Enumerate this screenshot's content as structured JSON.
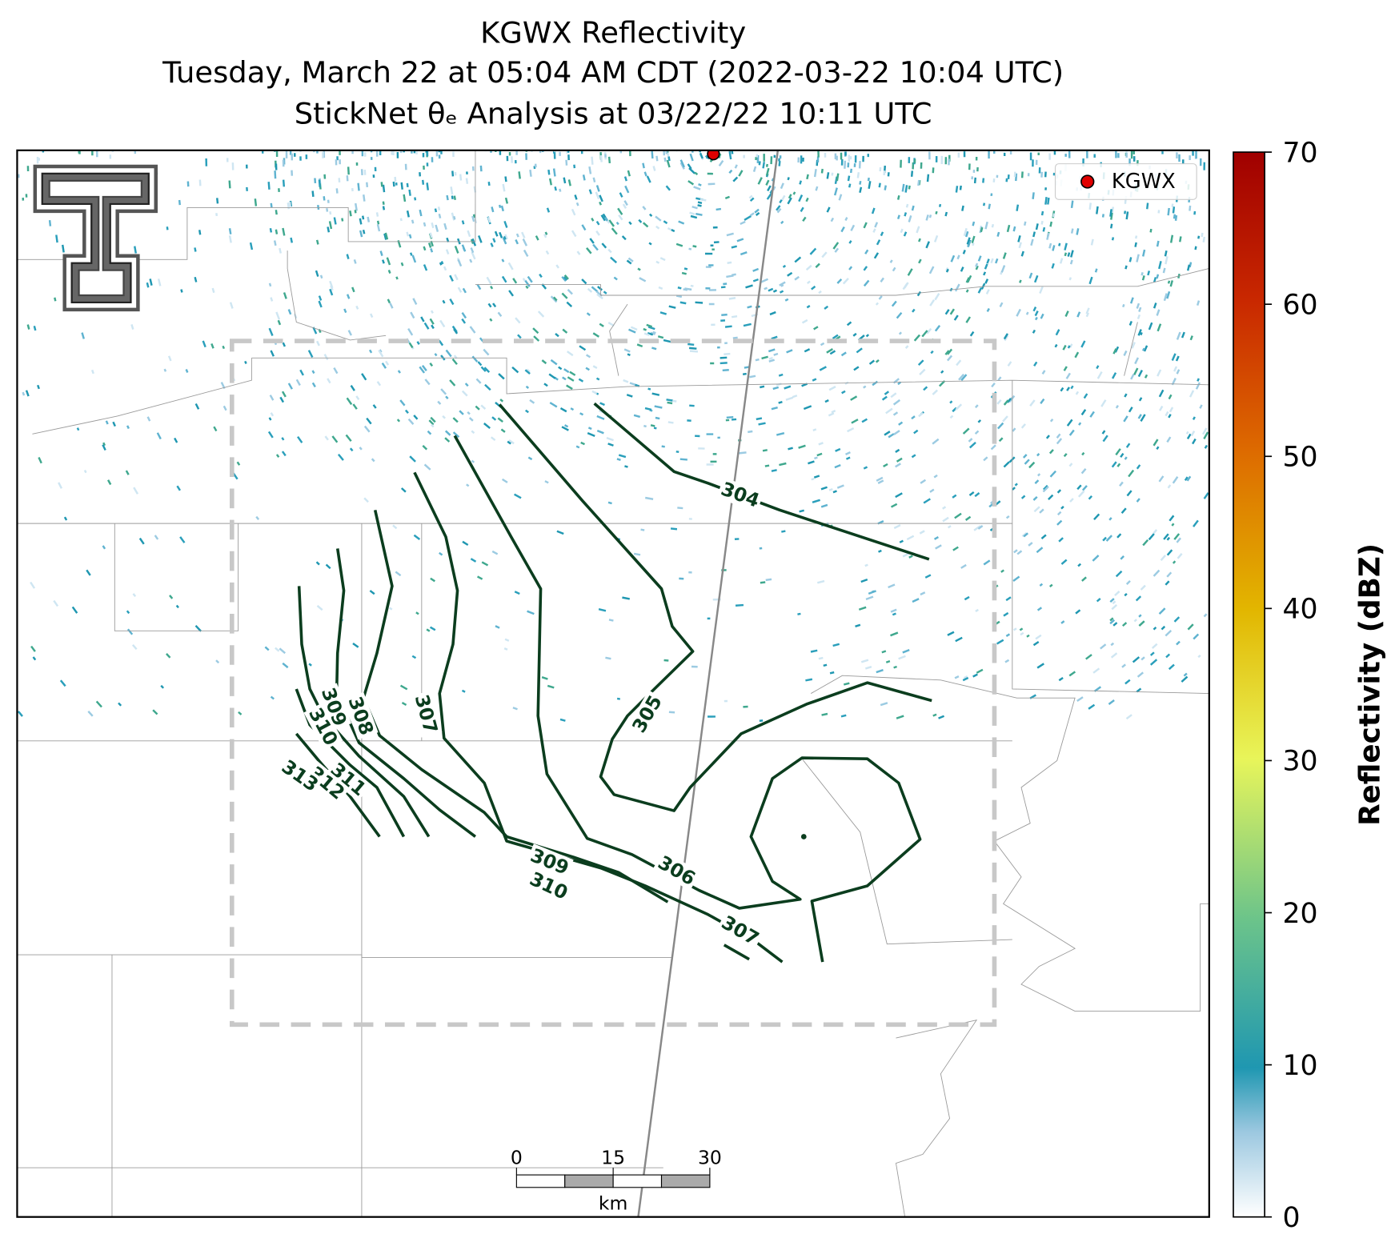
{
  "chart_data": {
    "type": "radar-map",
    "title": [
      "KGWX Reflectivity",
      "Tuesday, March 22 at 05:04 AM CDT (2022-03-22 10:04 UTC)",
      "StickNet θₑ Analysis at 03/22/22 10:11 UTC"
    ],
    "legend": {
      "name": "KGWX",
      "color": "#e00000",
      "corner": "upper right"
    },
    "colorbar": {
      "label": "Reflectivity (dBZ)",
      "ylim": [
        0,
        70
      ],
      "yticks": [
        0,
        10,
        20,
        30,
        40,
        50,
        60,
        70
      ]
    },
    "contours": [
      {
        "level": 304
      },
      {
        "level": 305
      },
      {
        "level": 306
      },
      {
        "level": 307
      },
      {
        "level": 308
      },
      {
        "level": 309
      },
      {
        "level": 310
      },
      {
        "level": 311
      },
      {
        "level": 312
      },
      {
        "level": 313
      }
    ],
    "scale_bar": {
      "xlim": [
        0,
        30
      ],
      "xticks": [
        0,
        15,
        30
      ],
      "unit": "km"
    }
  }
}
